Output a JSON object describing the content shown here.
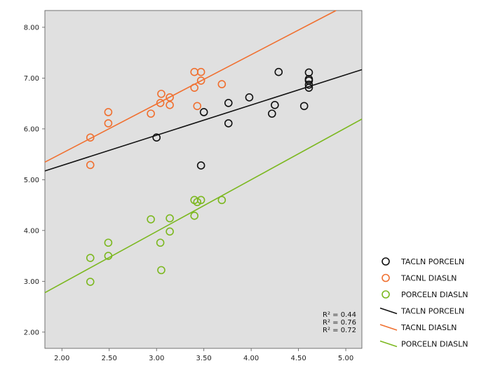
{
  "chart_data": {
    "type": "scatter",
    "title": "",
    "xlabel": "",
    "ylabel": "",
    "xlim": [
      1.82,
      5.17
    ],
    "ylim": [
      1.68,
      8.33
    ],
    "x_ticks": [
      2.0,
      2.5,
      3.0,
      3.5,
      4.0,
      4.5,
      5.0
    ],
    "x_tick_labels": [
      "2.00",
      "2.50",
      "3.00",
      "3.50",
      "4.00",
      "4.50",
      "5.00"
    ],
    "y_ticks": [
      2.0,
      3.0,
      4.0,
      5.0,
      6.0,
      7.0,
      8.0
    ],
    "y_tick_labels": [
      "2.00",
      "3.00",
      "4.00",
      "5.00",
      "6.00",
      "7.00",
      "8.00"
    ],
    "grid": false,
    "legend_position": "right",
    "background": "#e0e0e0",
    "series": [
      {
        "name": "TACLN PORCELN",
        "color": "#111111",
        "marker": "open-circle",
        "x": [
          3.0,
          3.47,
          3.5,
          3.76,
          3.76,
          3.98,
          4.22,
          4.25,
          4.29,
          4.56,
          4.61,
          4.61,
          4.61,
          4.61,
          4.61
        ],
        "y": [
          5.83,
          5.28,
          6.33,
          6.51,
          6.11,
          6.62,
          6.3,
          6.47,
          7.12,
          6.45,
          6.81,
          6.87,
          6.95,
          6.98,
          7.11
        ]
      },
      {
        "name": "TACNL DIASLN",
        "color": "#f07030",
        "marker": "open-circle",
        "x": [
          2.3,
          2.3,
          2.49,
          2.49,
          2.94,
          3.04,
          3.05,
          3.14,
          3.14,
          3.4,
          3.4,
          3.43,
          3.47,
          3.47,
          3.69
        ],
        "y": [
          5.83,
          5.29,
          6.33,
          6.11,
          6.3,
          6.51,
          6.69,
          6.47,
          6.62,
          6.81,
          7.12,
          6.45,
          6.95,
          7.12,
          6.88
        ]
      },
      {
        "name": "PORCELN DIASLN",
        "color": "#7cb820",
        "marker": "open-circle",
        "x": [
          2.3,
          2.3,
          2.49,
          2.49,
          2.94,
          3.04,
          3.05,
          3.14,
          3.14,
          3.4,
          3.4,
          3.43,
          3.47,
          3.69
        ],
        "y": [
          3.46,
          2.99,
          3.76,
          3.5,
          4.22,
          3.76,
          3.22,
          4.24,
          3.98,
          4.29,
          4.6,
          4.56,
          4.6,
          4.6
        ]
      }
    ],
    "fit_lines": [
      {
        "name": "TACLN PORCELN",
        "color": "#111111",
        "slope": 0.595,
        "intercept": 4.09,
        "r2": "R² = 0.44"
      },
      {
        "name": "TACNL DIASLN",
        "color": "#f07030",
        "slope": 0.97,
        "intercept": 3.58,
        "r2": "R² = 0.76"
      },
      {
        "name": "PORCELN DIASLN",
        "color": "#7cb820",
        "slope": 1.02,
        "intercept": 0.92,
        "r2": "R² = 0.72"
      }
    ]
  }
}
